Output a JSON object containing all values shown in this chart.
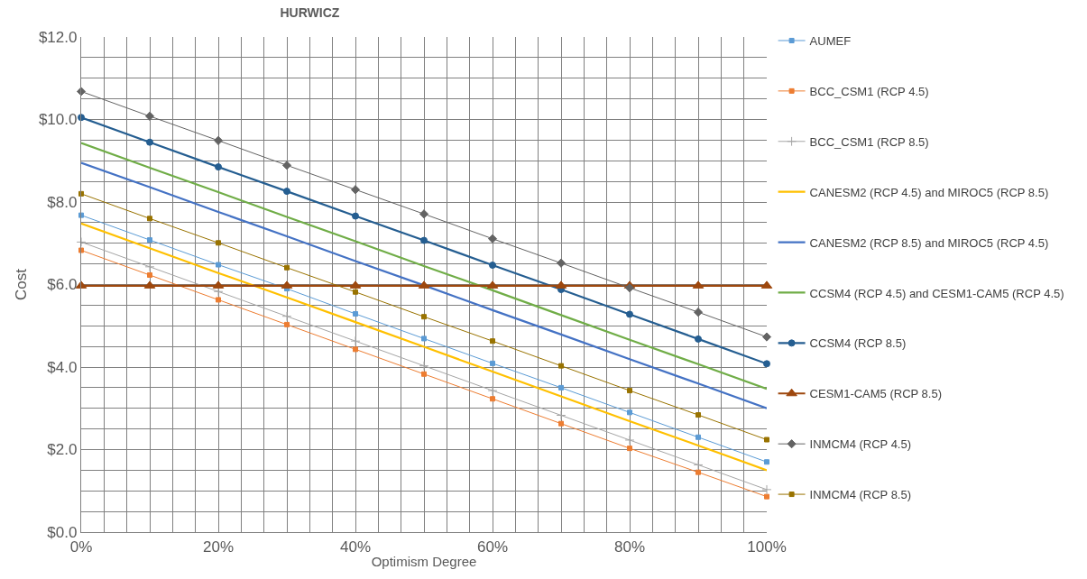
{
  "chart_data": {
    "type": "line",
    "title": "HURWICZ",
    "xlabel": "Optimism Degree",
    "ylabel": "Cost",
    "x": [
      0,
      10,
      20,
      30,
      40,
      50,
      60,
      70,
      80,
      90,
      100
    ],
    "xlim": [
      0,
      100
    ],
    "xticks": [
      {
        "value": 0,
        "label": "0%"
      },
      {
        "value": 3.333,
        "label": null
      },
      {
        "value": 6.667,
        "label": null
      },
      {
        "value": 10,
        "label": null
      },
      {
        "value": 13.333,
        "label": null
      },
      {
        "value": 16.667,
        "label": null
      },
      {
        "value": 20,
        "label": "20%"
      },
      {
        "value": 23.333,
        "label": null
      },
      {
        "value": 26.667,
        "label": null
      },
      {
        "value": 30,
        "label": null
      },
      {
        "value": 33.333,
        "label": null
      },
      {
        "value": 36.667,
        "label": null
      },
      {
        "value": 40,
        "label": "40%"
      },
      {
        "value": 43.333,
        "label": null
      },
      {
        "value": 46.667,
        "label": null
      },
      {
        "value": 50,
        "label": null
      },
      {
        "value": 53.333,
        "label": null
      },
      {
        "value": 56.667,
        "label": null
      },
      {
        "value": 60,
        "label": "60%"
      },
      {
        "value": 63.333,
        "label": null
      },
      {
        "value": 66.667,
        "label": null
      },
      {
        "value": 70,
        "label": null
      },
      {
        "value": 73.333,
        "label": null
      },
      {
        "value": 76.667,
        "label": null
      },
      {
        "value": 80,
        "label": "80%"
      },
      {
        "value": 83.333,
        "label": null
      },
      {
        "value": 86.667,
        "label": null
      },
      {
        "value": 90,
        "label": null
      },
      {
        "value": 93.333,
        "label": null
      },
      {
        "value": 96.667,
        "label": null
      },
      {
        "value": 100,
        "label": "100%"
      }
    ],
    "ylim": [
      0,
      12
    ],
    "yticks": [
      {
        "value": 0,
        "label": "$0.0"
      },
      {
        "value": 0.5,
        "label": null
      },
      {
        "value": 1,
        "label": null
      },
      {
        "value": 1.5,
        "label": null
      },
      {
        "value": 2,
        "label": "$2.0"
      },
      {
        "value": 2.5,
        "label": null
      },
      {
        "value": 3,
        "label": null
      },
      {
        "value": 3.5,
        "label": null
      },
      {
        "value": 4,
        "label": "$4.0"
      },
      {
        "value": 4.5,
        "label": null
      },
      {
        "value": 5,
        "label": null
      },
      {
        "value": 5.5,
        "label": null
      },
      {
        "value": 6,
        "label": "$6.0"
      },
      {
        "value": 6.5,
        "label": null
      },
      {
        "value": 7,
        "label": null
      },
      {
        "value": 7.5,
        "label": null
      },
      {
        "value": 8,
        "label": "$8.0"
      },
      {
        "value": 8.5,
        "label": null
      },
      {
        "value": 9,
        "label": null
      },
      {
        "value": 9.5,
        "label": null
      },
      {
        "value": 10,
        "label": "$10.0"
      },
      {
        "value": 10.5,
        "label": null
      },
      {
        "value": 11,
        "label": null
      },
      {
        "value": 11.5,
        "label": null
      },
      {
        "value": 12,
        "label": "$12.0"
      }
    ],
    "grid": true,
    "legend": "right",
    "line_style": "solid",
    "series": [
      {
        "name": "AUMEF",
        "color": "#5b9bd5",
        "marker": "square",
        "values": [
          7.68,
          7.08,
          6.48,
          5.9,
          5.29,
          4.69,
          4.09,
          3.5,
          2.9,
          2.3,
          1.7
        ]
      },
      {
        "name": "BCC_CSM1 (RCP 4.5)",
        "color": "#ed7d31",
        "marker": "square",
        "values": [
          6.83,
          6.23,
          5.63,
          5.03,
          4.43,
          3.83,
          3.23,
          2.63,
          2.03,
          1.45,
          0.86
        ]
      },
      {
        "name": "BCC_CSM1 (RCP 8.5)",
        "color": "#a5a5a5",
        "marker": "cross",
        "values": [
          7.03,
          6.43,
          5.83,
          5.23,
          4.63,
          4.03,
          3.43,
          2.83,
          2.23,
          1.63,
          1.03
        ]
      },
      {
        "name": "CANESM2 (RCP 4.5) and MIROC5 (RCP 8.5)",
        "color": "#ffc000",
        "marker": "none",
        "values": [
          7.48,
          6.88,
          6.28,
          5.69,
          5.09,
          4.49,
          3.89,
          3.29,
          2.69,
          2.1,
          1.5
        ]
      },
      {
        "name": "CANESM2 (RCP 8.5) and MIROC5 (RCP 4.5)",
        "color": "#4472c4",
        "marker": "none",
        "values": [
          8.95,
          8.36,
          7.76,
          7.17,
          6.57,
          5.98,
          5.38,
          4.79,
          4.19,
          3.6,
          3.0
        ]
      },
      {
        "name": "CCSM4 (RCP 4.5) and CESM1-CAM5 (RCP 4.5)",
        "color": "#70ad47",
        "marker": "none",
        "values": [
          9.43,
          8.83,
          8.24,
          7.64,
          7.05,
          6.45,
          5.86,
          5.26,
          4.66,
          4.07,
          3.47
        ]
      },
      {
        "name": "CCSM4 (RCP 8.5)",
        "color": "#255e91",
        "marker": "circle",
        "values": [
          10.05,
          9.45,
          8.85,
          8.26,
          7.66,
          7.07,
          6.47,
          5.88,
          5.28,
          4.68,
          4.08
        ]
      },
      {
        "name": "CESM1-CAM5 (RCP 8.5)",
        "color": "#9e480e",
        "marker": "triangle",
        "values": [
          5.97,
          5.97,
          5.97,
          5.97,
          5.97,
          5.97,
          5.97,
          5.97,
          5.97,
          5.97,
          5.97
        ]
      },
      {
        "name": "INMCM4 (RCP 4.5)",
        "color": "#636363",
        "marker": "diamond",
        "values": [
          10.68,
          10.08,
          9.49,
          8.89,
          8.3,
          7.71,
          7.11,
          6.52,
          5.92,
          5.33,
          4.73
        ]
      },
      {
        "name": "INMCM4 (RCP 8.5)",
        "color": "#997300",
        "marker": "square",
        "values": [
          8.2,
          7.6,
          7.01,
          6.41,
          5.82,
          5.22,
          4.63,
          4.03,
          3.43,
          2.84,
          2.24
        ]
      }
    ]
  }
}
